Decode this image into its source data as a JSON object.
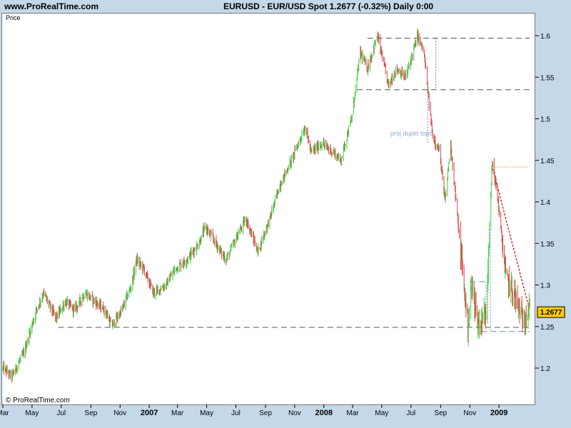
{
  "header": {
    "site": "www.ProRealTime.com",
    "title": "EURUSD - EUR/USD Spot    1.2677 (-0.32%)    Daily  0:00"
  },
  "plot": {
    "price_label": "Price",
    "copyright": "© ProRealTime.com",
    "annotation": "proj duplo topo",
    "last_price": "1.2677"
  },
  "chart_data": {
    "type": "candlestick",
    "symbol": "EURUSD",
    "timeframe": "Daily",
    "last": 1.2677,
    "change_pct": -0.32,
    "ylim": [
      1.16,
      1.625
    ],
    "y_ticks": [
      1.2,
      1.25,
      1.3,
      1.35,
      1.4,
      1.45,
      1.5,
      1.55,
      1.6
    ],
    "x_tick_labels": [
      "Mar",
      "May",
      "Jul",
      "Sep",
      "Nov",
      "2007",
      "Mar",
      "May",
      "Jul",
      "Sep",
      "Nov",
      "2008",
      "Mar",
      "May",
      "Jul",
      "Sep",
      "Nov",
      "2009"
    ],
    "xlim": [
      "2006-03-01",
      "2009-03-06"
    ],
    "x_tick_dates": [
      "2006-03-01",
      "2006-05-01",
      "2006-07-01",
      "2006-09-01",
      "2006-11-01",
      "2007-01-01",
      "2007-03-01",
      "2007-05-01",
      "2007-07-01",
      "2007-09-01",
      "2007-11-01",
      "2008-01-01",
      "2008-03-01",
      "2008-05-01",
      "2008-07-01",
      "2008-09-01",
      "2008-11-01",
      "2009-01-01"
    ],
    "price_path": [
      [
        "2006-03-01",
        1.2
      ],
      [
        "2006-03-20",
        1.19
      ],
      [
        "2006-04-15",
        1.22
      ],
      [
        "2006-05-10",
        1.27
      ],
      [
        "2006-05-25",
        1.29
      ],
      [
        "2006-06-20",
        1.26
      ],
      [
        "2006-07-10",
        1.28
      ],
      [
        "2006-07-28",
        1.27
      ],
      [
        "2006-08-20",
        1.29
      ],
      [
        "2006-09-10",
        1.28
      ],
      [
        "2006-09-30",
        1.27
      ],
      [
        "2006-10-15",
        1.25
      ],
      [
        "2006-11-05",
        1.27
      ],
      [
        "2006-11-25",
        1.3
      ],
      [
        "2006-12-05",
        1.33
      ],
      [
        "2006-12-20",
        1.32
      ],
      [
        "2007-01-10",
        1.29
      ],
      [
        "2007-02-05",
        1.3
      ],
      [
        "2007-02-25",
        1.32
      ],
      [
        "2007-03-20",
        1.33
      ],
      [
        "2007-04-15",
        1.35
      ],
      [
        "2007-04-28",
        1.37
      ],
      [
        "2007-05-20",
        1.35
      ],
      [
        "2007-06-10",
        1.33
      ],
      [
        "2007-07-05",
        1.36
      ],
      [
        "2007-07-22",
        1.38
      ],
      [
        "2007-08-16",
        1.34
      ],
      [
        "2007-09-10",
        1.38
      ],
      [
        "2007-10-01",
        1.42
      ],
      [
        "2007-10-25",
        1.45
      ],
      [
        "2007-11-23",
        1.49
      ],
      [
        "2007-12-05",
        1.46
      ],
      [
        "2007-12-28",
        1.47
      ],
      [
        "2008-01-20",
        1.46
      ],
      [
        "2008-02-05",
        1.45
      ],
      [
        "2008-02-28",
        1.5
      ],
      [
        "2008-03-17",
        1.58
      ],
      [
        "2008-04-01",
        1.56
      ],
      [
        "2008-04-22",
        1.6
      ],
      [
        "2008-05-15",
        1.54
      ],
      [
        "2008-06-01",
        1.56
      ],
      [
        "2008-06-20",
        1.55
      ],
      [
        "2008-07-15",
        1.6
      ],
      [
        "2008-07-28",
        1.58
      ],
      [
        "2008-08-15",
        1.48
      ],
      [
        "2008-08-30",
        1.46
      ],
      [
        "2008-09-10",
        1.4
      ],
      [
        "2008-09-22",
        1.47
      ],
      [
        "2008-10-08",
        1.37
      ],
      [
        "2008-10-28",
        1.25
      ],
      [
        "2008-11-05",
        1.3
      ],
      [
        "2008-11-20",
        1.25
      ],
      [
        "2008-12-05",
        1.27
      ],
      [
        "2008-12-18",
        1.45
      ],
      [
        "2008-12-30",
        1.4
      ],
      [
        "2009-01-15",
        1.31
      ],
      [
        "2009-02-01",
        1.29
      ],
      [
        "2009-02-18",
        1.26
      ],
      [
        "2009-03-06",
        1.2677
      ]
    ],
    "horizontal_lines": [
      {
        "value": 1.597,
        "start": "2008-04-01",
        "end": "2009-03-06",
        "style": "dashed",
        "color": "#555555"
      },
      {
        "value": 1.535,
        "start": "2008-03-10",
        "end": "2009-03-06",
        "style": "dashed",
        "color": "#555555"
      },
      {
        "value": 1.249,
        "start": "2006-06-25",
        "end": "2009-03-06",
        "style": "dashed",
        "color": "#555555"
      },
      {
        "value": 1.442,
        "start": "2008-12-18",
        "end": "2009-03-06",
        "style": "dotted",
        "color": "#e0b000"
      },
      {
        "value": 1.244,
        "start": "2008-11-25",
        "end": "2009-03-06",
        "style": "dashed",
        "color": "#6688cc"
      },
      {
        "value": 1.304,
        "start": "2008-11-01",
        "end": "2008-12-05",
        "style": "dashed",
        "color": "#6688cc"
      }
    ],
    "colors": {
      "up": "#44cc44",
      "down": "#dd4444",
      "price_box": "#ffcc00",
      "annotation": "#8aa8d8"
    }
  }
}
